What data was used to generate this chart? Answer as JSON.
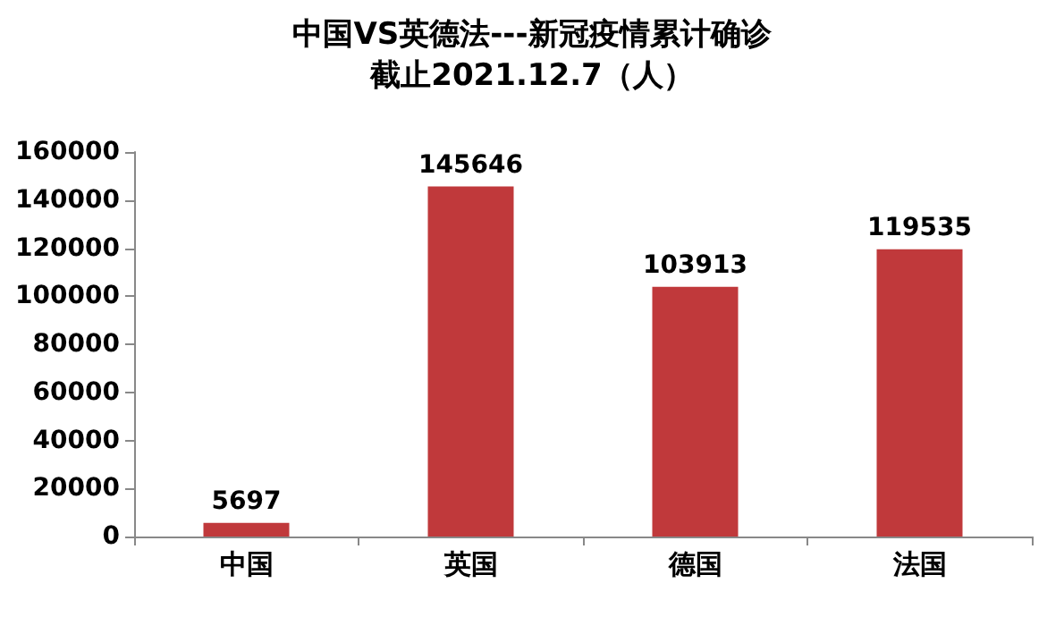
{
  "chart_data": {
    "type": "bar",
    "title": "中国VS英德法---新冠疫情累计确诊",
    "subtitle": "截止2021.12.7（人）",
    "categories": [
      "中国",
      "英国",
      "德国",
      "法国"
    ],
    "values": [
      5697,
      145646,
      103913,
      119535
    ],
    "color": "#c0393b",
    "ylim": [
      0,
      160000
    ],
    "yticks": [
      0,
      20000,
      40000,
      60000,
      80000,
      100000,
      120000,
      140000,
      160000
    ],
    "grid": false,
    "data_labels": true
  }
}
